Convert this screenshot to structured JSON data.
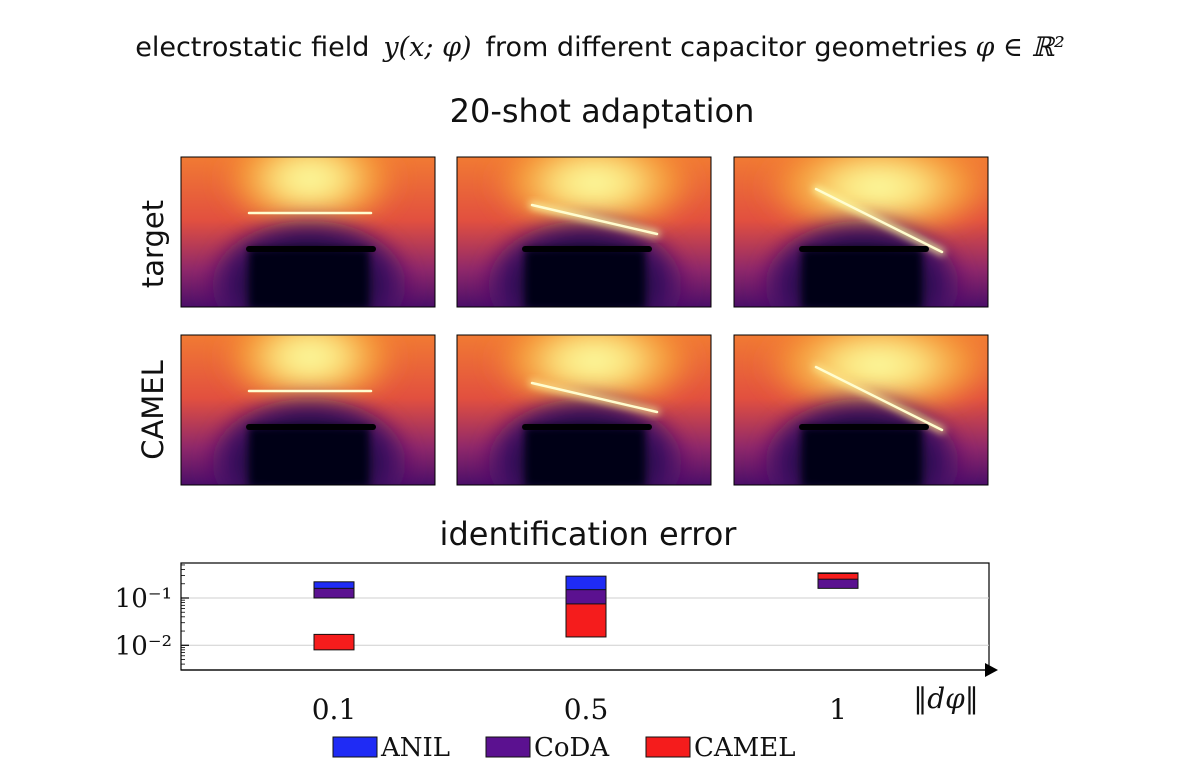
{
  "title": {
    "text_before": "electrostatic field",
    "field_symbol": "y(x; φ)",
    "text_middle": "from different capacitor geometries",
    "param_symbol": "φ ∈ ℝ²"
  },
  "heatmaps": {
    "title": "20-shot adaptation",
    "row_labels": [
      "target",
      "CAMEL"
    ],
    "colormap": "inferno",
    "columns": 3
  },
  "chart_data": {
    "type": "bar",
    "title": "identification error",
    "xlabel": "‖dφ‖",
    "ylabel": "",
    "yscale": "log",
    "ylim": [
      0.003,
      0.55
    ],
    "categories": [
      "0.1",
      "0.5",
      "1"
    ],
    "ytick_labels": [
      "10⁻²",
      "10⁻¹"
    ],
    "ytick_values": [
      0.01,
      0.1
    ],
    "grid": true,
    "legend_position": "bottom-center",
    "series": [
      {
        "name": "ANIL",
        "color": "#1f2bf5",
        "ranges": [
          [
            0.13,
            0.22
          ],
          [
            0.1,
            0.29
          ],
          [
            0.18,
            0.34
          ]
        ]
      },
      {
        "name": "CoDA",
        "color": "#5b1190",
        "ranges": [
          [
            0.1,
            0.16
          ],
          [
            0.07,
            0.15
          ],
          [
            0.16,
            0.3
          ]
        ]
      },
      {
        "name": "CAMEL",
        "color": "#f51c1c",
        "ranges": [
          [
            0.008,
            0.017
          ],
          [
            0.015,
            0.075
          ],
          [
            0.25,
            0.33
          ]
        ]
      }
    ]
  }
}
